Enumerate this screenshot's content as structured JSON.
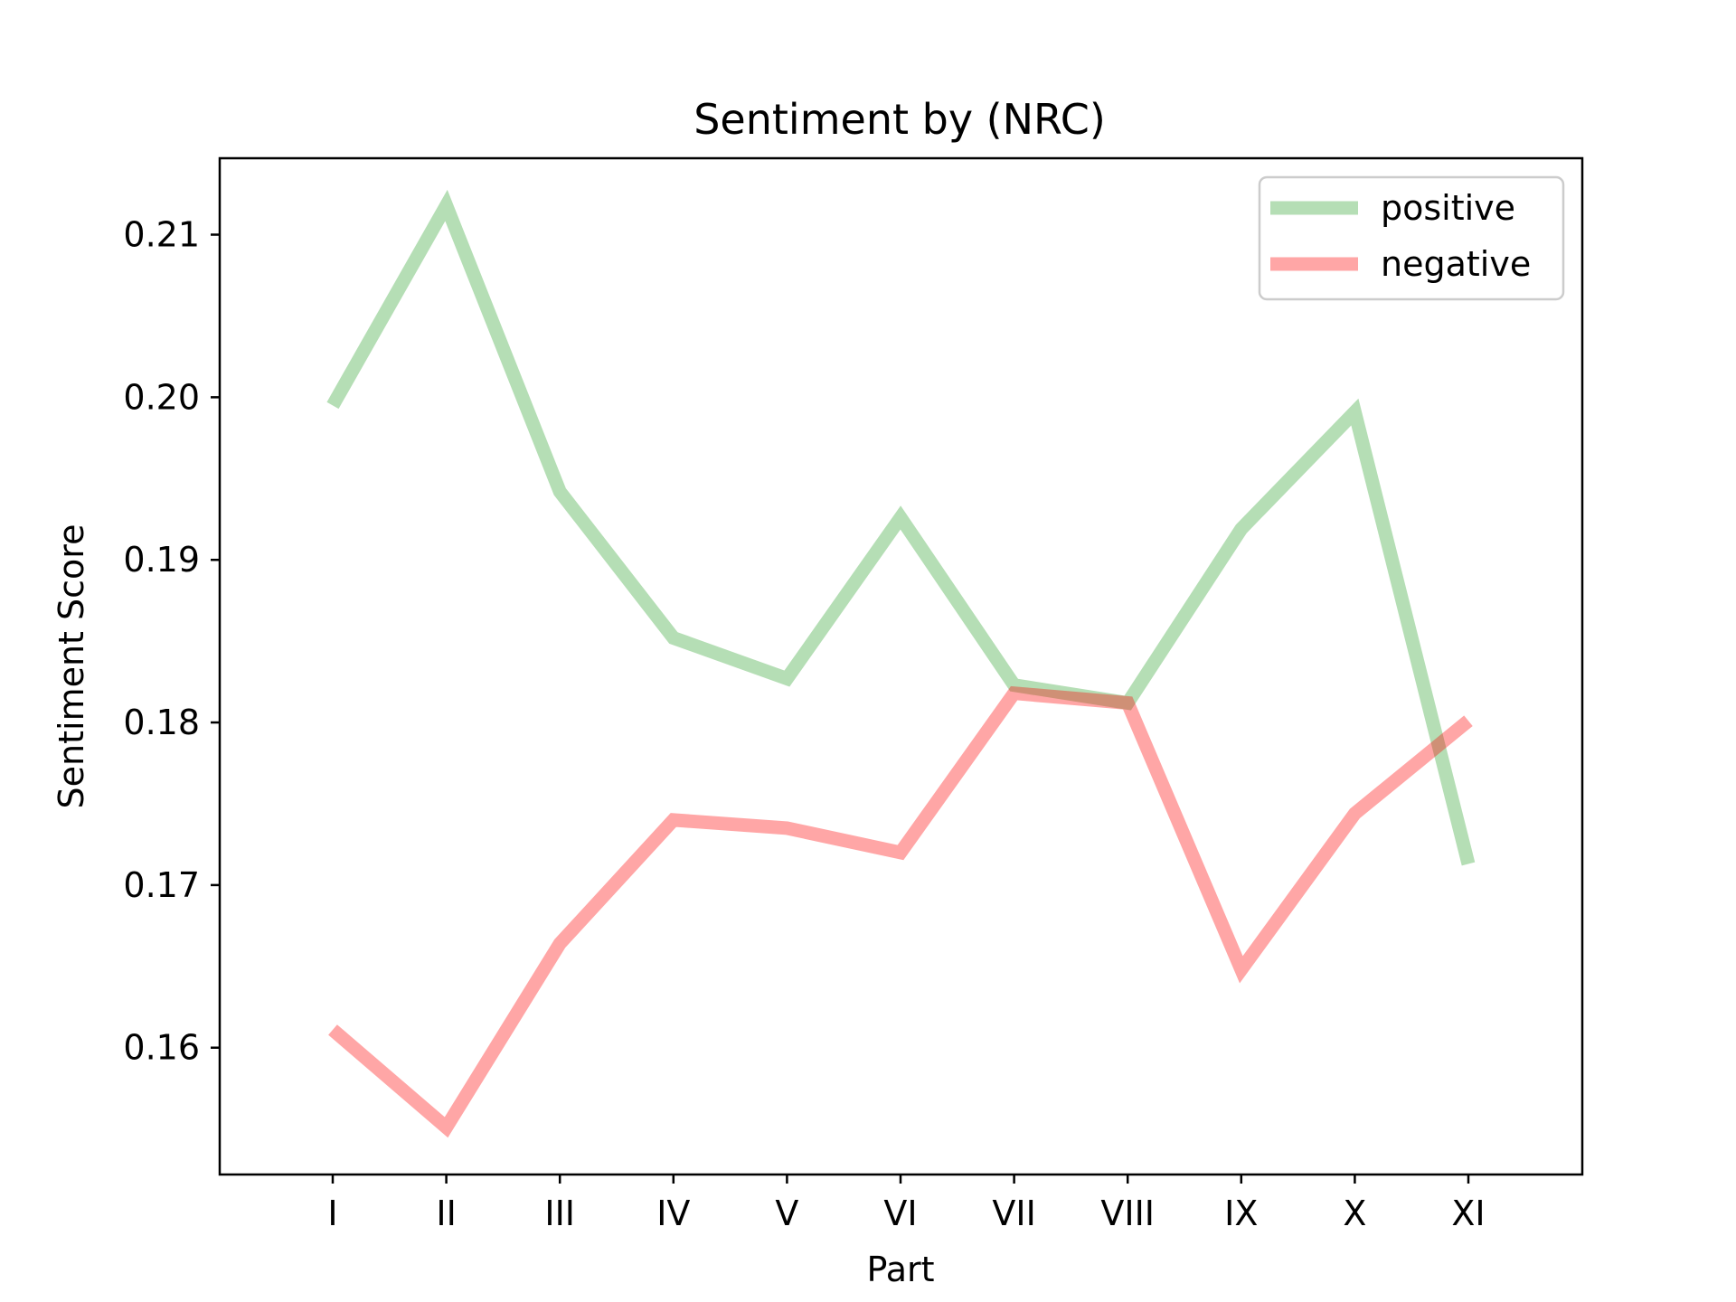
{
  "chart_data": {
    "type": "line",
    "title": "Sentiment by (NRC)",
    "xlabel": "Part",
    "ylabel": "Sentiment Score",
    "categories": [
      "I",
      "II",
      "III",
      "IV",
      "V",
      "VI",
      "VII",
      "VIII",
      "IX",
      "X",
      "XI"
    ],
    "series": [
      {
        "name": "positive",
        "color": "#2ca02c",
        "values": [
          0.1995,
          0.2118,
          0.1942,
          0.1852,
          0.1827,
          0.1926,
          0.1823,
          0.1812,
          0.1919,
          0.1991,
          0.1713
        ]
      },
      {
        "name": "negative",
        "color": "#ff0000",
        "values": [
          0.1611,
          0.1551,
          0.1664,
          0.174,
          0.1735,
          0.172,
          0.1818,
          0.1812,
          0.1648,
          0.1744,
          0.1801
        ]
      }
    ],
    "ylim": [
      0.1522,
      0.2147
    ],
    "yticks": [
      "0.16",
      "0.17",
      "0.18",
      "0.19",
      "0.20",
      "0.21"
    ],
    "ytick_values": [
      0.16,
      0.17,
      0.18,
      0.19,
      0.2,
      0.21
    ],
    "legend_position": "top-right",
    "grid": false
  }
}
